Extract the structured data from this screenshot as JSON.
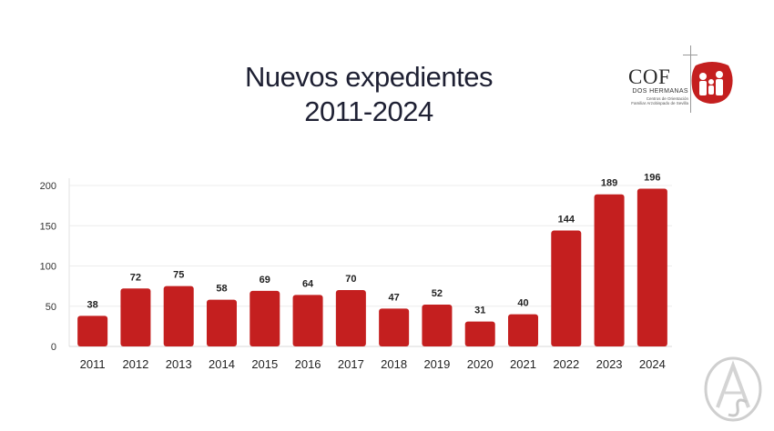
{
  "header": {
    "title_line1": "Nuevos expedientes",
    "title_line2": "2011-2024"
  },
  "logo": {
    "name": "COF",
    "subtitle": "DOS HERMANAS",
    "tagline_line1": "Centros de Orientación",
    "tagline_line2": "Familiar Arzobispado de Sevilla"
  },
  "colors": {
    "bar": "#c41f1f",
    "title": "#1e2033",
    "axis_text": "#333333",
    "grid": "#ececec"
  },
  "chart_data": {
    "type": "bar",
    "categories": [
      "2011",
      "2012",
      "2013",
      "2014",
      "2015",
      "2016",
      "2017",
      "2018",
      "2019",
      "2020",
      "2021",
      "2022",
      "2023",
      "2024"
    ],
    "values": [
      38,
      72,
      75,
      58,
      69,
      64,
      70,
      47,
      52,
      31,
      40,
      144,
      189,
      196
    ],
    "title": "Nuevos expedientes 2011-2024",
    "xlabel": "",
    "ylabel": "",
    "ylim": [
      0,
      200
    ],
    "yticks": [
      0,
      50,
      100,
      150,
      200
    ],
    "grid": true,
    "data_labels": true
  }
}
